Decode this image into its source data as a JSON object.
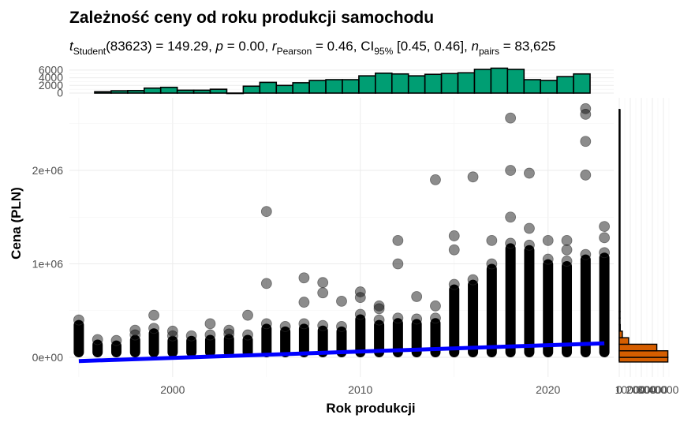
{
  "chart_data": {
    "type": "scatter",
    "title": "Zależność ceny od roku produkcji samochodu",
    "subtitle": {
      "t_symbol": "t",
      "t_sub": "Student",
      "t_rest": "(83623) = 149.29, ",
      "p_symbol": "p",
      "p_rest": " = 0.00, ",
      "r_symbol": "r",
      "r_sub": "Pearson",
      "r_rest": " = 0.46, CI",
      "ci_sub": "95%",
      "ci_rest": " [0.45, 0.46], ",
      "n_symbol": "n",
      "n_sub": "pairs",
      "n_rest": " = 83,625"
    },
    "xlabel": "Rok produkcji",
    "ylabel": "Cena (PLN)",
    "xlim": [
      1994.5,
      2023.5
    ],
    "ylim": [
      -170000,
      2700000
    ],
    "x_ticks": [
      {
        "value": 2000,
        "label": "2000"
      },
      {
        "value": 2010,
        "label": "2010"
      },
      {
        "value": 2020,
        "label": "2020"
      }
    ],
    "y_ticks": [
      {
        "value": 0,
        "label": "0e+00"
      },
      {
        "value": 1000000,
        "label": "1e+06"
      },
      {
        "value": 2000000,
        "label": "2e+06"
      }
    ],
    "grid": true,
    "point_color": "#000000",
    "point_opacity": 0.45,
    "regression_line": {
      "color": "#0000ff",
      "x": [
        1995,
        2023
      ],
      "y": [
        -40000,
        150000
      ]
    },
    "columns": [
      {
        "year": 1995,
        "max": 400000,
        "outliers": []
      },
      {
        "year": 1996,
        "max": 190000,
        "outliers": []
      },
      {
        "year": 1997,
        "max": 180000,
        "outliers": []
      },
      {
        "year": 1998,
        "max": 240000,
        "outliers": [
          290000
        ]
      },
      {
        "year": 1999,
        "max": 310000,
        "outliers": [
          450000
        ]
      },
      {
        "year": 2000,
        "max": 230000,
        "outliers": [
          280000
        ]
      },
      {
        "year": 2001,
        "max": 230000,
        "outliers": []
      },
      {
        "year": 2002,
        "max": 240000,
        "outliers": [
          360000
        ]
      },
      {
        "year": 2003,
        "max": 250000,
        "outliers": [
          290000
        ]
      },
      {
        "year": 2004,
        "max": 240000,
        "outliers": [
          450000
        ]
      },
      {
        "year": 2005,
        "max": 360000,
        "outliers": [
          790000,
          1560000
        ]
      },
      {
        "year": 2006,
        "max": 330000,
        "outliers": []
      },
      {
        "year": 2007,
        "max": 360000,
        "outliers": [
          590000,
          850000
        ]
      },
      {
        "year": 2008,
        "max": 340000,
        "outliers": [
          690000,
          800000
        ]
      },
      {
        "year": 2009,
        "max": 330000,
        "outliers": [
          600000
        ]
      },
      {
        "year": 2010,
        "max": 460000,
        "outliers": [
          640000,
          700000
        ]
      },
      {
        "year": 2011,
        "max": 400000,
        "outliers": [
          520000,
          550000
        ]
      },
      {
        "year": 2012,
        "max": 420000,
        "outliers": [
          1000000,
          1250000
        ]
      },
      {
        "year": 2013,
        "max": 410000,
        "outliers": [
          650000
        ]
      },
      {
        "year": 2014,
        "max": 420000,
        "outliers": [
          550000,
          1900000
        ]
      },
      {
        "year": 2015,
        "max": 780000,
        "outliers": [
          1150000,
          1300000
        ]
      },
      {
        "year": 2016,
        "max": 830000,
        "outliers": [
          1930000
        ]
      },
      {
        "year": 2017,
        "max": 1000000,
        "outliers": [
          1250000
        ]
      },
      {
        "year": 2018,
        "max": 1220000,
        "outliers": [
          1500000,
          2000000,
          2560000
        ]
      },
      {
        "year": 2019,
        "max": 1200000,
        "outliers": [
          1380000,
          1970000
        ]
      },
      {
        "year": 2020,
        "max": 1050000,
        "outliers": [
          1250000
        ]
      },
      {
        "year": 2021,
        "max": 1030000,
        "outliers": [
          1150000,
          1250000
        ]
      },
      {
        "year": 2022,
        "max": 1100000,
        "outliers": [
          1950000,
          2310000,
          2600000,
          2660000
        ]
      },
      {
        "year": 2023,
        "max": 1120000,
        "outliers": [
          1280000,
          1400000
        ]
      }
    ],
    "top_histogram": {
      "color": "#009e73",
      "y_ticks": [
        {
          "value": 0,
          "label": "0"
        },
        {
          "value": 2000,
          "label": "2000"
        },
        {
          "value": 4000,
          "label": "4000"
        },
        {
          "value": 6000,
          "label": "6000"
        }
      ],
      "ylim": [
        0,
        6800
      ],
      "bins": [
        {
          "x0": 1995,
          "x1": 1996,
          "count": 350
        },
        {
          "x0": 1996,
          "x1": 1997,
          "count": 600
        },
        {
          "x0": 1997,
          "x1": 1998,
          "count": 650
        },
        {
          "x0": 1998,
          "x1": 1999,
          "count": 1300
        },
        {
          "x0": 1999,
          "x1": 2000,
          "count": 1500
        },
        {
          "x0": 2000,
          "x1": 2001,
          "count": 750
        },
        {
          "x0": 2001,
          "x1": 2002,
          "count": 750
        },
        {
          "x0": 2002,
          "x1": 2003,
          "count": 1000
        },
        {
          "x0": 2003,
          "x1": 2004,
          "count": 0
        },
        {
          "x0": 2004,
          "x1": 2005,
          "count": 1800
        },
        {
          "x0": 2005,
          "x1": 2006,
          "count": 2800
        },
        {
          "x0": 2006,
          "x1": 2007,
          "count": 2000
        },
        {
          "x0": 2007,
          "x1": 2008,
          "count": 2700
        },
        {
          "x0": 2008,
          "x1": 2009,
          "count": 3300
        },
        {
          "x0": 2009,
          "x1": 2010,
          "count": 3500
        },
        {
          "x0": 2010,
          "x1": 2011,
          "count": 3500
        },
        {
          "x0": 2011,
          "x1": 2012,
          "count": 4500
        },
        {
          "x0": 2012,
          "x1": 2013,
          "count": 5200
        },
        {
          "x0": 2013,
          "x1": 2014,
          "count": 5000
        },
        {
          "x0": 2014,
          "x1": 2015,
          "count": 4500
        },
        {
          "x0": 2015,
          "x1": 2016,
          "count": 4900
        },
        {
          "x0": 2016,
          "x1": 2017,
          "count": 5100
        },
        {
          "x0": 2017,
          "x1": 2018,
          "count": 5300
        },
        {
          "x0": 2018,
          "x1": 2019,
          "count": 6200
        },
        {
          "x0": 2019,
          "x1": 2020,
          "count": 6500
        },
        {
          "x0": 2020,
          "x1": 2021,
          "count": 6200
        },
        {
          "x0": 2021,
          "x1": 2022,
          "count": 3500
        },
        {
          "x0": 2022,
          "x1": 2023,
          "count": 3300
        },
        {
          "x0": 2023,
          "x1": 2024,
          "count": 4300
        },
        {
          "x0": 2024,
          "x1": 2025,
          "count": 5000
        }
      ]
    },
    "right_histogram": {
      "color": "#d55e00",
      "x_ticks": [
        {
          "value": 0,
          "label": "0"
        },
        {
          "value": 10000,
          "label": "10000"
        },
        {
          "value": 20000,
          "label": "20000"
        },
        {
          "value": 30000,
          "label": "30000"
        },
        {
          "value": 40000,
          "label": "40000"
        }
      ],
      "xlim": [
        0,
        45000
      ],
      "bins": [
        {
          "y0": -50000,
          "y1": 0,
          "count": 44000
        },
        {
          "y0": 0,
          "y1": 70000,
          "count": 44000
        },
        {
          "y0": 70000,
          "y1": 140000,
          "count": 34000
        },
        {
          "y0": 140000,
          "y1": 210000,
          "count": 8500
        },
        {
          "y0": 210000,
          "y1": 280000,
          "count": 2800
        },
        {
          "y0": 280000,
          "y1": 350000,
          "count": 900
        },
        {
          "y0": 350000,
          "y1": 420000,
          "count": 300
        },
        {
          "y0": 420000,
          "y1": 490000,
          "count": 120
        },
        {
          "y0": 490000,
          "y1": 2650000,
          "count": 30
        }
      ]
    }
  }
}
